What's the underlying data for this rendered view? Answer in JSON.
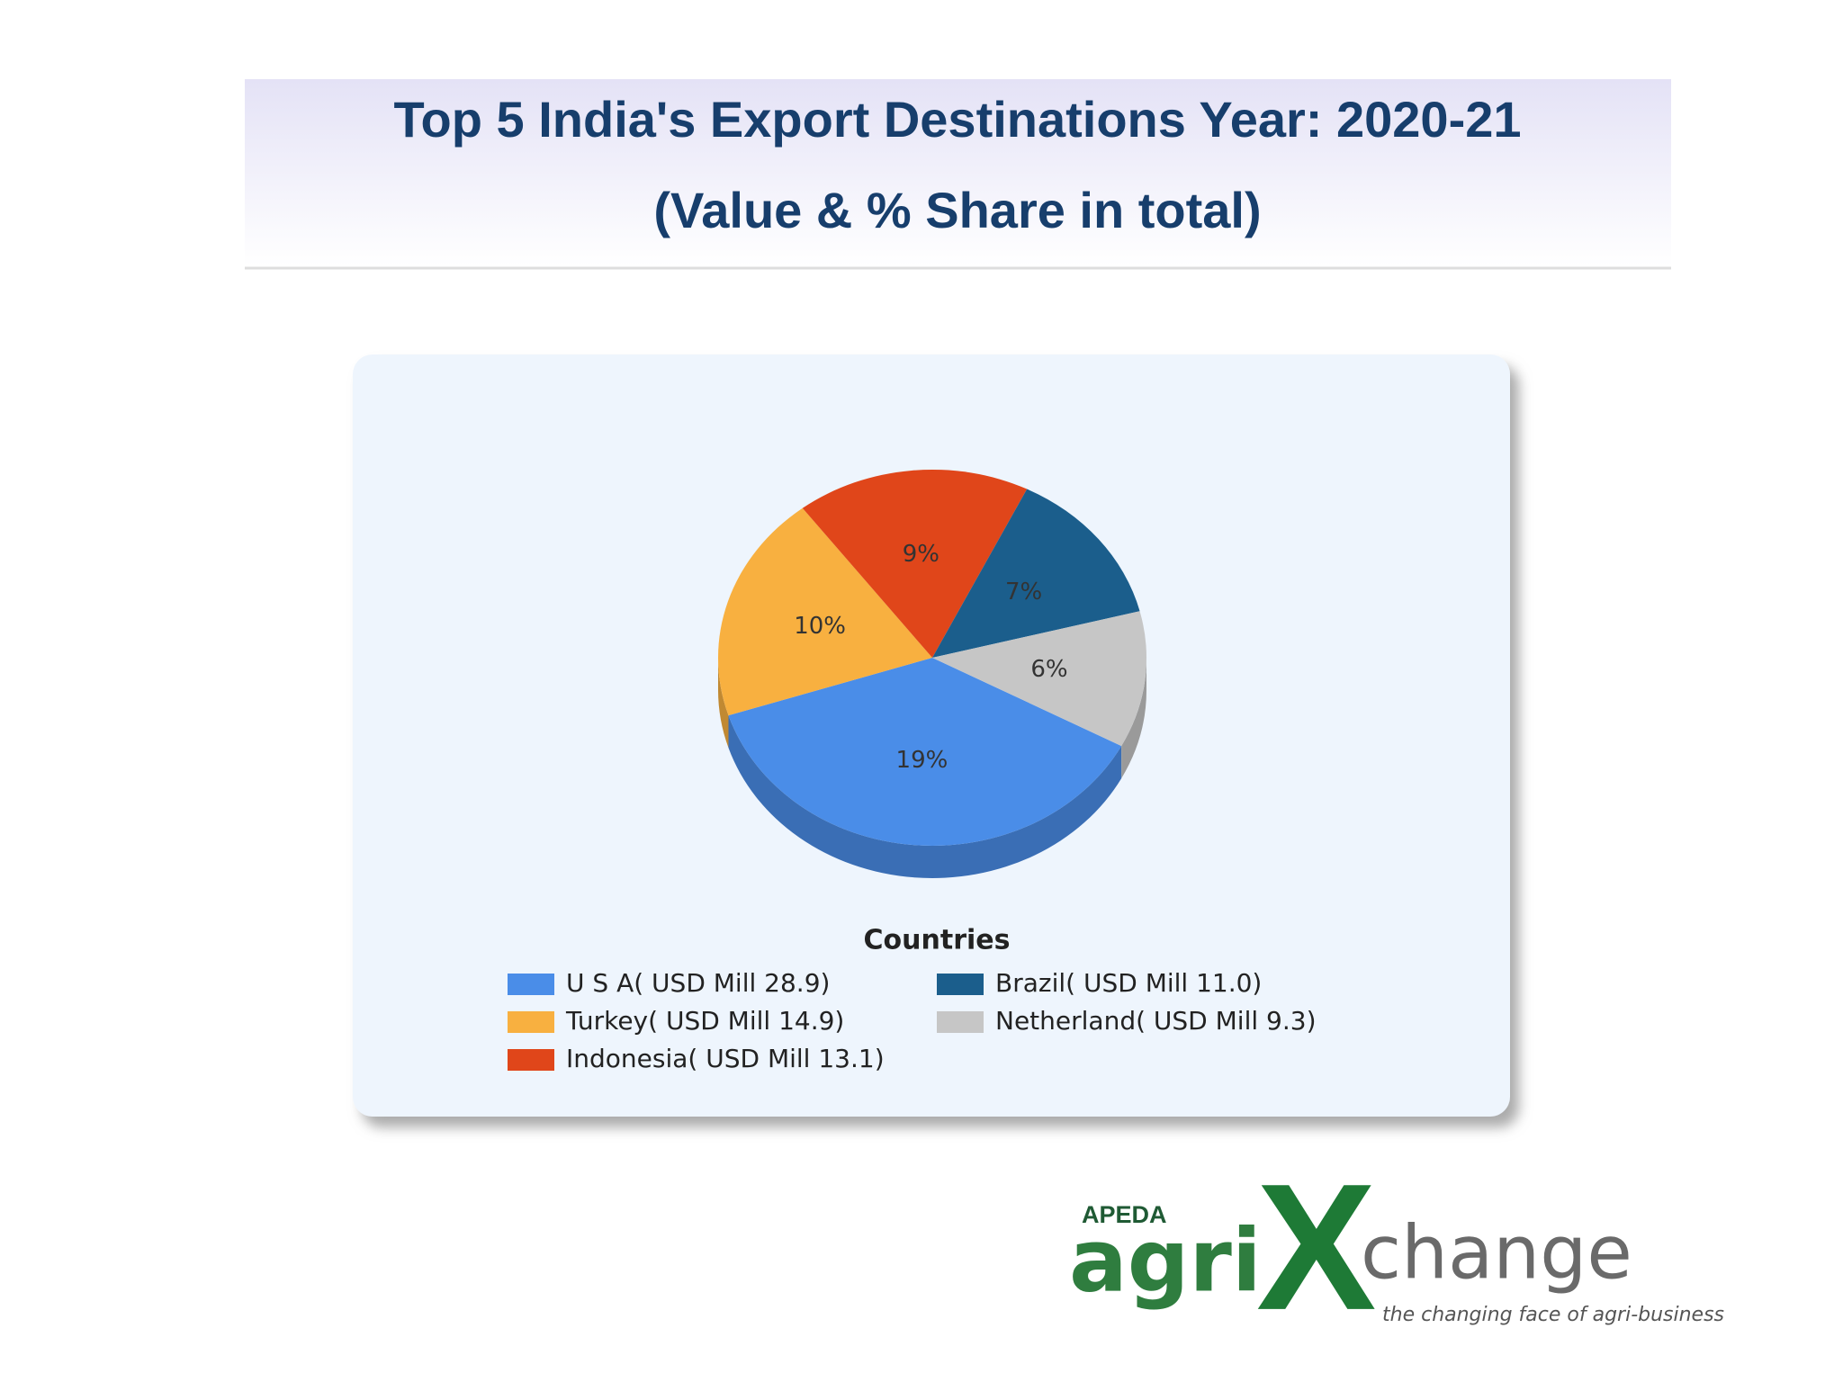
{
  "chart_data": {
    "type": "pie",
    "title": "Top 5 India's Export Destinations Year: 2020-21",
    "subtitle": "(Value & % Share in total)",
    "legend_title": "Countries",
    "series": [
      {
        "name": "U S A( USD Mill 28.9)",
        "color": "#4a8de8"
      },
      {
        "name": "Turkey( USD Mill 14.9)",
        "color": "#f8b040"
      },
      {
        "name": "Indonesia( USD Mill 13.1)",
        "color": "#e0461a"
      },
      {
        "name": "Brazil( USD Mill 11.0)",
        "color": "#1b5e8c"
      },
      {
        "name": "Netherland( USD Mill 9.3)",
        "color": "#c6c6c6"
      }
    ],
    "values": [
      19,
      10,
      9,
      7,
      6
    ],
    "value_labels": [
      "19%",
      "10%",
      "9%",
      "7%",
      "6%"
    ]
  },
  "logo": {
    "org": "APEDA",
    "brand_1": "agri",
    "brand_2": "X",
    "brand_3": "change",
    "tagline": "the changing face of agri-business"
  }
}
